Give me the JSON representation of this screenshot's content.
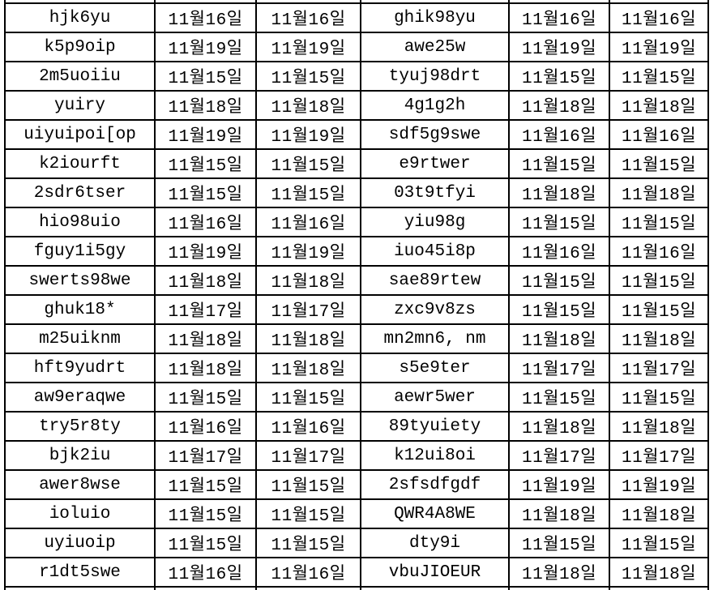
{
  "colors": {
    "background": "#ffffff",
    "grid_line": "#000000",
    "text": "#000000"
  },
  "table": {
    "rows": [
      [
        "hjk6yu",
        "11월16일",
        "11월16일",
        "ghik98yu",
        "11월16일",
        "11월16일"
      ],
      [
        "k5p9oip",
        "11월19일",
        "11월19일",
        "awe25w",
        "11월19일",
        "11월19일"
      ],
      [
        "2m5uoiiu",
        "11월15일",
        "11월15일",
        "tyuj98drt",
        "11월15일",
        "11월15일"
      ],
      [
        "yuiry",
        "11월18일",
        "11월18일",
        "4g1g2h",
        "11월18일",
        "11월18일"
      ],
      [
        "uiyuipoi[op",
        "11월19일",
        "11월19일",
        "sdf5g9swe",
        "11월16일",
        "11월16일"
      ],
      [
        "k2iourft",
        "11월15일",
        "11월15일",
        "e9rtwer",
        "11월15일",
        "11월15일"
      ],
      [
        "2sdr6tser",
        "11월15일",
        "11월15일",
        "03t9tfyi",
        "11월18일",
        "11월18일"
      ],
      [
        "hio98uio",
        "11월16일",
        "11월16일",
        "yiu98g",
        "11월15일",
        "11월15일"
      ],
      [
        "fguy1i5gy",
        "11월19일",
        "11월19일",
        "iuo45i8p",
        "11월16일",
        "11월16일"
      ],
      [
        "swerts98we",
        "11월18일",
        "11월18일",
        "sae89rtew",
        "11월15일",
        "11월15일"
      ],
      [
        "ghuk18*",
        "11월17일",
        "11월17일",
        "zxc9v8zs",
        "11월15일",
        "11월15일"
      ],
      [
        "m25uiknm",
        "11월18일",
        "11월18일",
        "mn2mn6, nm",
        "11월18일",
        "11월18일"
      ],
      [
        "hft9yudrt",
        "11월18일",
        "11월18일",
        "s5e9ter",
        "11월17일",
        "11월17일"
      ],
      [
        "aw9eraqwe",
        "11월15일",
        "11월15일",
        "aewr5wer",
        "11월15일",
        "11월15일"
      ],
      [
        "try5r8ty",
        "11월16일",
        "11월16일",
        "89tyuiety",
        "11월18일",
        "11월18일"
      ],
      [
        "bjk2iu",
        "11월17일",
        "11월17일",
        "k12ui8oi",
        "11월17일",
        "11월17일"
      ],
      [
        "awer8wse",
        "11월15일",
        "11월15일",
        "2sfsdfgdf",
        "11월19일",
        "11월19일"
      ],
      [
        "ioluio",
        "11월15일",
        "11월15일",
        "QWR4A8WE",
        "11월18일",
        "11월18일"
      ],
      [
        "uyiuoip",
        "11월15일",
        "11월15일",
        "dty9i",
        "11월15일",
        "11월15일"
      ],
      [
        "r1dt5swe",
        "11월16일",
        "11월16일",
        "vbuJIOEUR",
        "11월18일",
        "11월18일"
      ]
    ]
  }
}
